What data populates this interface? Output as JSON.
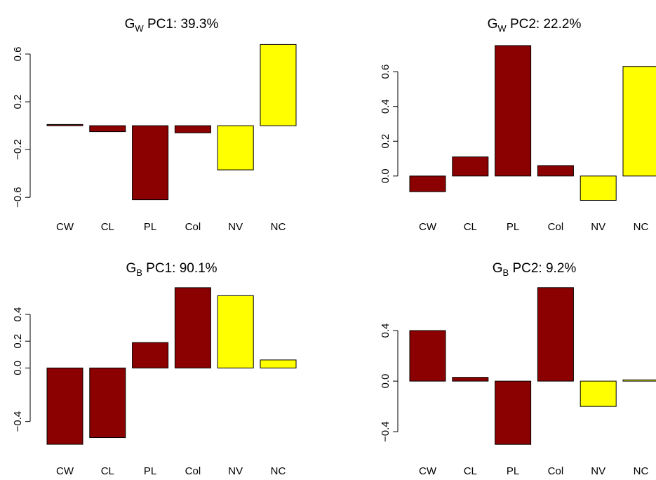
{
  "colors": {
    "dark": "#8b0000",
    "light": "#ffff00"
  },
  "chart_data": [
    {
      "type": "bar",
      "title_main": "G",
      "title_sub": "W",
      "title_rest": " PC1: 39.3%",
      "categories": [
        "CW",
        "CL",
        "PL",
        "Col",
        "NV",
        "NC"
      ],
      "values": [
        0.01,
        -0.05,
        -0.62,
        -0.06,
        -0.37,
        0.68
      ],
      "bar_colors": [
        "dark",
        "dark",
        "dark",
        "dark",
        "light",
        "light"
      ],
      "ylim": [
        -0.64,
        0.7
      ],
      "yticks": [
        -0.6,
        -0.2,
        0.2,
        0.6
      ],
      "ytick_labels": [
        "−0.6",
        "−0.2",
        "0.2",
        "0.6"
      ]
    },
    {
      "type": "bar",
      "title_main": "G",
      "title_sub": "W",
      "title_rest": " PC2: 22.2%",
      "categories": [
        "CW",
        "CL",
        "PL",
        "Col",
        "NV",
        "NC"
      ],
      "values": [
        -0.09,
        0.11,
        0.75,
        0.06,
        -0.14,
        0.63
      ],
      "bar_colors": [
        "dark",
        "dark",
        "dark",
        "dark",
        "light",
        "light"
      ],
      "ylim": [
        -0.15,
        0.77
      ],
      "yticks": [
        0.0,
        0.2,
        0.4,
        0.6
      ],
      "ytick_labels": [
        "0.0",
        "0.2",
        "0.4",
        "0.6"
      ]
    },
    {
      "type": "bar",
      "title_main": "G",
      "title_sub": "B",
      "title_rest": " PC1: 90.1%",
      "categories": [
        "CW",
        "CL",
        "PL",
        "Col",
        "NV",
        "NC"
      ],
      "values": [
        -0.57,
        -0.52,
        0.19,
        0.6,
        0.54,
        0.06
      ],
      "bar_colors": [
        "dark",
        "dark",
        "dark",
        "dark",
        "light",
        "light"
      ],
      "ylim": [
        -0.58,
        0.61
      ],
      "yticks": [
        -0.4,
        0.0,
        0.2,
        0.4
      ],
      "ytick_labels": [
        "−0.4",
        "0.0",
        "0.2",
        "0.4"
      ]
    },
    {
      "type": "bar",
      "title_main": "G",
      "title_sub": "B",
      "title_rest": " PC2: 9.2%",
      "categories": [
        "CW",
        "CL",
        "PL",
        "Col",
        "NV",
        "NC"
      ],
      "values": [
        0.4,
        0.03,
        -0.5,
        0.74,
        -0.2,
        0.01
      ],
      "bar_colors": [
        "dark",
        "dark",
        "dark",
        "dark",
        "light",
        "light"
      ],
      "ylim": [
        -0.51,
        0.75
      ],
      "yticks": [
        -0.4,
        0.0,
        0.4
      ],
      "ytick_labels": [
        "−0.4",
        "0.0",
        "0.4"
      ]
    }
  ]
}
